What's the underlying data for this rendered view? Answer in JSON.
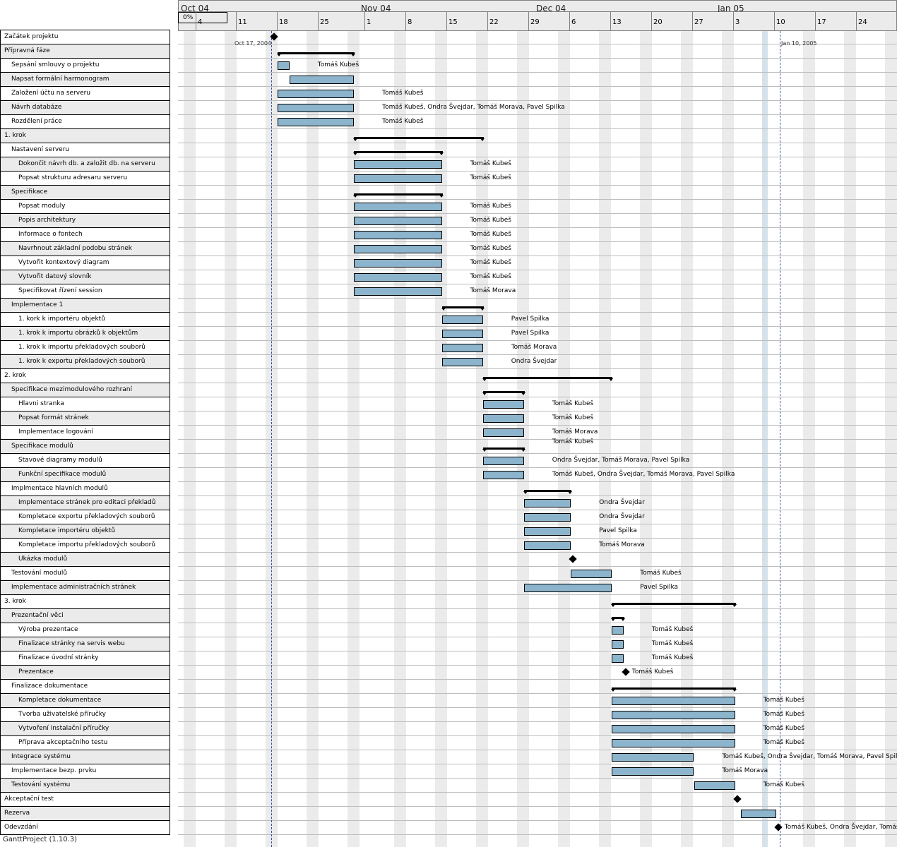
{
  "app_footer": "GanttProject (1.10.3)",
  "progress": "0%",
  "timeline": {
    "months": [
      "Oct 04",
      "Nov 04",
      "Dec 04",
      "Jan 05"
    ],
    "weeks": [
      "4",
      "11",
      "18",
      "25",
      "1",
      "8",
      "15",
      "22",
      "29",
      "6",
      "13",
      "20",
      "27",
      "3",
      "10",
      "17",
      "24"
    ]
  },
  "markers": [
    {
      "label": "Oct 17, 2004",
      "color": "#3a4fa8"
    },
    {
      "label": "Jan 10, 2005",
      "color": "#3a4fa8"
    }
  ],
  "colors": {
    "bar": "#8cb4cc",
    "weekend": "#ebebeb",
    "holiday": "#d6e2ea"
  },
  "tasks": [
    {
      "name": "Začátek projektu",
      "level": 0,
      "type": "milestone",
      "start": "2004-10-17",
      "end": "2004-10-17",
      "resources": ""
    },
    {
      "name": "Přípravná fáze",
      "level": 0,
      "type": "summary",
      "start": "2004-10-18",
      "end": "2004-10-31",
      "resources": ""
    },
    {
      "name": "Sepsání smlouvy o projektu",
      "level": 1,
      "type": "task",
      "start": "2004-10-18",
      "end": "2004-10-20",
      "resources": "Tomáš Kubeš"
    },
    {
      "name": "Napsat formální harmonogram",
      "level": 1,
      "type": "task",
      "start": "2004-10-20",
      "end": "2004-10-31",
      "resources": ""
    },
    {
      "name": "Založení účtu na serveru",
      "level": 1,
      "type": "task",
      "start": "2004-10-18",
      "end": "2004-10-31",
      "resources": "Tomáš Kubeš"
    },
    {
      "name": "Návrh databáze",
      "level": 1,
      "type": "task",
      "start": "2004-10-18",
      "end": "2004-10-31",
      "resources": "Tomáš Kubeš, Ondra Švejdar, Tomáš Morava, Pavel Spilka"
    },
    {
      "name": "Rozdělení práce",
      "level": 1,
      "type": "task",
      "start": "2004-10-18",
      "end": "2004-10-31",
      "resources": "Tomáš Kubeš"
    },
    {
      "name": "1. krok",
      "level": 0,
      "type": "summary",
      "start": "2004-10-31",
      "end": "2004-11-22",
      "resources": ""
    },
    {
      "name": "Nastavení serveru",
      "level": 1,
      "type": "summary",
      "start": "2004-10-31",
      "end": "2004-11-15",
      "resources": ""
    },
    {
      "name": "Dokončit návrh db. a založit db. na serveru",
      "level": 2,
      "type": "task",
      "start": "2004-10-31",
      "end": "2004-11-15",
      "resources": "Tomáš Kubeš"
    },
    {
      "name": "Popsat strukturu adresaru serveru",
      "level": 2,
      "type": "task",
      "start": "2004-10-31",
      "end": "2004-11-15",
      "resources": "Tomáš Kubeš"
    },
    {
      "name": "Specifikace",
      "level": 1,
      "type": "summary",
      "start": "2004-10-31",
      "end": "2004-11-15",
      "resources": ""
    },
    {
      "name": "Popsat moduly",
      "level": 2,
      "type": "task",
      "start": "2004-10-31",
      "end": "2004-11-15",
      "resources": "Tomáš Kubeš"
    },
    {
      "name": "Popis architektury",
      "level": 2,
      "type": "task",
      "start": "2004-10-31",
      "end": "2004-11-15",
      "resources": "Tomáš Kubeš"
    },
    {
      "name": "Informace o fontech",
      "level": 2,
      "type": "task",
      "start": "2004-10-31",
      "end": "2004-11-15",
      "resources": "Tomáš Kubeš"
    },
    {
      "name": "Navrhnout základní podobu stránek",
      "level": 2,
      "type": "task",
      "start": "2004-10-31",
      "end": "2004-11-15",
      "resources": "Tomáš Kubeš"
    },
    {
      "name": "Vytvořit kontextový diagram",
      "level": 2,
      "type": "task",
      "start": "2004-10-31",
      "end": "2004-11-15",
      "resources": "Tomáš Kubeš"
    },
    {
      "name": "Vytvořit datový slovník",
      "level": 2,
      "type": "task",
      "start": "2004-10-31",
      "end": "2004-11-15",
      "resources": "Tomáš Kubeš"
    },
    {
      "name": "Specifikovat řízení session",
      "level": 2,
      "type": "task",
      "start": "2004-10-31",
      "end": "2004-11-15",
      "resources": "Tomáš Morava"
    },
    {
      "name": "Implementace 1",
      "level": 1,
      "type": "summary",
      "start": "2004-11-15",
      "end": "2004-11-22",
      "resources": ""
    },
    {
      "name": "1. kork k importéru objektů",
      "level": 2,
      "type": "task",
      "start": "2004-11-15",
      "end": "2004-11-22",
      "resources": "Pavel Spilka"
    },
    {
      "name": "1. krok k importu obrázků k objektům",
      "level": 2,
      "type": "task",
      "start": "2004-11-15",
      "end": "2004-11-22",
      "resources": "Pavel Spilka"
    },
    {
      "name": "1. krok k importu překladových souborů",
      "level": 2,
      "type": "task",
      "start": "2004-11-15",
      "end": "2004-11-22",
      "resources": "Tomáš Morava"
    },
    {
      "name": "1. krok k exportu překladových souborů",
      "level": 2,
      "type": "task",
      "start": "2004-11-15",
      "end": "2004-11-22",
      "resources": "Ondra Švejdar"
    },
    {
      "name": "2. krok",
      "level": 0,
      "type": "summary",
      "start": "2004-11-22",
      "end": "2004-12-14",
      "resources": ""
    },
    {
      "name": "Specifikace mezimodulového rozhraní",
      "level": 1,
      "type": "summary",
      "start": "2004-11-22",
      "end": "2004-11-29",
      "resources": ""
    },
    {
      "name": "Hlavni stranka",
      "level": 2,
      "type": "task",
      "start": "2004-11-22",
      "end": "2004-11-29",
      "resources": "Tomáš Kubeš"
    },
    {
      "name": "Popsat formát stránek",
      "level": 2,
      "type": "task",
      "start": "2004-11-22",
      "end": "2004-11-29",
      "resources": "Tomáš Kubeš"
    },
    {
      "name": "Implementace logování",
      "level": 2,
      "type": "task",
      "start": "2004-11-22",
      "end": "2004-11-29",
      "resources": "Tomáš Morava"
    },
    {
      "name": "Specifikace modulů",
      "level": 1,
      "type": "summary",
      "start": "2004-11-22",
      "end": "2004-11-29",
      "resources": "Tomáš Kubeš"
    },
    {
      "name": "Stavové diagramy modulů",
      "level": 2,
      "type": "task",
      "start": "2004-11-22",
      "end": "2004-11-29",
      "resources": "Ondra Švejdar, Tomáš Morava, Pavel Spilka"
    },
    {
      "name": "Funkční specifikace modulů",
      "level": 2,
      "type": "task",
      "start": "2004-11-22",
      "end": "2004-11-29",
      "resources": "Tomáš Kubeš, Ondra Švejdar, Tomáš Morava, Pavel Spilka"
    },
    {
      "name": "Implmentace hlavních modulů",
      "level": 1,
      "type": "summary",
      "start": "2004-11-29",
      "end": "2004-12-07",
      "resources": ""
    },
    {
      "name": "Implementace stránek pro editaci překladů",
      "level": 2,
      "type": "task",
      "start": "2004-11-29",
      "end": "2004-12-07",
      "resources": "Ondra Švejdar"
    },
    {
      "name": "Kompletace exportu překladových souborů",
      "level": 2,
      "type": "task",
      "start": "2004-11-29",
      "end": "2004-12-07",
      "resources": "Ondra Švejdar"
    },
    {
      "name": "Kompletace importéru objektů",
      "level": 2,
      "type": "task",
      "start": "2004-11-29",
      "end": "2004-12-07",
      "resources": "Pavel Spilka"
    },
    {
      "name": "Kompletace importu překladových souborů",
      "level": 2,
      "type": "task",
      "start": "2004-11-29",
      "end": "2004-12-07",
      "resources": "Tomáš Morava"
    },
    {
      "name": "Ukázka modulů",
      "level": 2,
      "type": "milestone",
      "start": "2004-12-07",
      "end": "2004-12-07",
      "resources": ""
    },
    {
      "name": "Testování modulů",
      "level": 1,
      "type": "task",
      "start": "2004-12-07",
      "end": "2004-12-14",
      "resources": "Tomáš Kubeš"
    },
    {
      "name": "Implementace administračních stránek",
      "level": 1,
      "type": "task",
      "start": "2004-11-29",
      "end": "2004-12-14",
      "resources": "Pavel Spilka"
    },
    {
      "name": "3. krok",
      "level": 0,
      "type": "summary",
      "start": "2004-12-14",
      "end": "2005-01-04",
      "resources": ""
    },
    {
      "name": "Prezentační věci",
      "level": 1,
      "type": "summary",
      "start": "2004-12-14",
      "end": "2004-12-16",
      "resources": ""
    },
    {
      "name": "Výroba prezentace",
      "level": 2,
      "type": "task",
      "start": "2004-12-14",
      "end": "2004-12-16",
      "resources": "Tomáš Kubeš"
    },
    {
      "name": "Finalizace stránky na servis webu",
      "level": 2,
      "type": "task",
      "start": "2004-12-14",
      "end": "2004-12-16",
      "resources": "Tomáš Kubeš"
    },
    {
      "name": "Finalizace úvodní stránky",
      "level": 2,
      "type": "task",
      "start": "2004-12-14",
      "end": "2004-12-16",
      "resources": "Tomáš Kubeš"
    },
    {
      "name": "Prezentace",
      "level": 2,
      "type": "milestone",
      "start": "2004-12-16",
      "end": "2004-12-16",
      "resources": "Tomáš Kubeš"
    },
    {
      "name": "Finalizace dokumentace",
      "level": 1,
      "type": "summary",
      "start": "2004-12-14",
      "end": "2005-01-04",
      "resources": ""
    },
    {
      "name": "Kompletace dokumentace",
      "level": 2,
      "type": "task",
      "start": "2004-12-14",
      "end": "2005-01-04",
      "resources": "Tomáš Kubeš"
    },
    {
      "name": "Tvorba uživatelské příručky",
      "level": 2,
      "type": "task",
      "start": "2004-12-14",
      "end": "2005-01-04",
      "resources": "Tomáš Kubeš"
    },
    {
      "name": "Vytvoření instalační příručky",
      "level": 2,
      "type": "task",
      "start": "2004-12-14",
      "end": "2005-01-04",
      "resources": "Tomáš Kubeš"
    },
    {
      "name": "Příprava akceptačního testu",
      "level": 2,
      "type": "task",
      "start": "2004-12-14",
      "end": "2005-01-04",
      "resources": "Tomáš Kubeš"
    },
    {
      "name": "Integrace systému",
      "level": 1,
      "type": "task",
      "start": "2004-12-14",
      "end": "2004-12-28",
      "resources": "Tomáš Kubeš, Ondra Švejdar, Tomáš Morava, Pavel Spilka"
    },
    {
      "name": "Implementace bezp. prvku",
      "level": 1,
      "type": "task",
      "start": "2004-12-14",
      "end": "2004-12-28",
      "resources": "Tomáš Morava"
    },
    {
      "name": "Testování systému",
      "level": 1,
      "type": "task",
      "start": "2004-12-28",
      "end": "2005-01-04",
      "resources": "Tomáš Kubeš"
    },
    {
      "name": "Akceptační test",
      "level": 0,
      "type": "milestone",
      "start": "2005-01-04",
      "end": "2005-01-04",
      "resources": ""
    },
    {
      "name": "Rezerva",
      "level": 0,
      "type": "task",
      "start": "2005-01-05",
      "end": "2005-01-11",
      "resources": ""
    },
    {
      "name": "Odevzdání",
      "level": 0,
      "type": "milestone",
      "start": "2005-01-11",
      "end": "2005-01-11",
      "resources": "Tomáš Kubeš, Ondra Švejdar, Tomáš"
    }
  ]
}
